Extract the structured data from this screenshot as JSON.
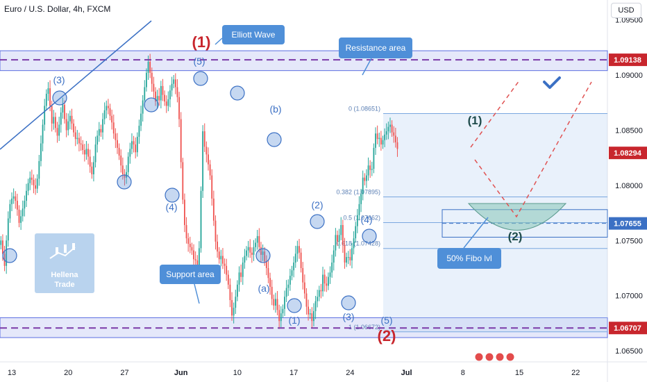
{
  "header": {
    "title": "Euro / U.S. Dollar, 4h, FXCM",
    "currency": "USD"
  },
  "watermark": {
    "line1": "Hellena",
    "line2": "Trade"
  },
  "colors": {
    "up": "#26a69a",
    "down": "#ef5350",
    "zone": "#5b6ee1",
    "wave": "#3b70c4",
    "red": "#c8262d",
    "dark": "#1e4b4b",
    "callout": "#4f8fd8"
  },
  "chart_data": {
    "type": "candlestick",
    "y_axis": {
      "ylim": [
        1.064,
        1.0968
      ],
      "tick_labels": [
        "1.09500",
        "1.09000",
        "1.08500",
        "1.08000",
        "1.07500",
        "1.07000",
        "1.06500"
      ],
      "tick_values": [
        1.095,
        1.09,
        1.085,
        1.08,
        1.075,
        1.07,
        1.065
      ],
      "price_tags": [
        {
          "label": "1.09138",
          "value": 1.09138,
          "color": "#c8262d"
        },
        {
          "label": "1.08294",
          "value": 1.08294,
          "color": "#c8262d"
        },
        {
          "label": "1.07655",
          "value": 1.07655,
          "color": "#3b70c4"
        },
        {
          "label": "1.06707",
          "value": 1.06707,
          "color": "#c8262d"
        }
      ]
    },
    "x_axis": {
      "tick_labels": [
        "13",
        "20",
        "27",
        "Jun",
        "10",
        "17",
        "24",
        "Jul",
        "8",
        "15",
        "22"
      ],
      "tick_bars": [
        6,
        37,
        68,
        99,
        130,
        161,
        192,
        223,
        254,
        285,
        316
      ]
    },
    "candles_close": [
      1.075,
      1.0738,
      1.0727,
      1.075,
      1.077,
      1.0783,
      1.0788,
      1.079,
      1.0786,
      1.0778,
      1.0766,
      1.0772,
      1.0779,
      1.0786,
      1.0795,
      1.0802,
      1.0807,
      1.0805,
      1.08,
      1.0797,
      1.0806,
      1.0822,
      1.0838,
      1.0855,
      1.0872,
      1.0883,
      1.0888,
      1.0872,
      1.0856,
      1.0862,
      1.0852,
      1.0845,
      1.0855,
      1.0866,
      1.0873,
      1.086,
      1.085,
      1.0858,
      1.0863,
      1.0856,
      1.0848,
      1.0842,
      1.0843,
      1.0838,
      1.0837,
      1.0832,
      1.0828,
      1.0833,
      1.0826,
      1.0817,
      1.081,
      1.0821,
      1.0837,
      1.0845,
      1.0851,
      1.0848,
      1.086,
      1.0868,
      1.0872,
      1.087,
      1.0863,
      1.0857,
      1.0847,
      1.0841,
      1.0834,
      1.0827,
      1.0818,
      1.081,
      1.0807,
      1.0812,
      1.0826,
      1.0833,
      1.084,
      1.0837,
      1.083,
      1.0844,
      1.0854,
      1.0865,
      1.0877,
      1.0889,
      1.0902,
      1.0912,
      1.0902,
      1.0892,
      1.0885,
      1.0876,
      1.0881,
      1.0877,
      1.089,
      1.0882,
      1.0876,
      1.0872,
      1.0878,
      1.0886,
      1.0892,
      1.0896,
      1.0889,
      1.088,
      1.086,
      1.0821,
      1.0787,
      1.0764,
      1.0752,
      1.0747,
      1.0744,
      1.0741,
      1.0733,
      1.0732,
      1.0725,
      1.0743,
      1.0795,
      1.0849,
      1.0835,
      1.0828,
      1.0819,
      1.0809,
      1.0788,
      1.0768,
      1.0749,
      1.074,
      1.0733,
      1.0736,
      1.0729,
      1.0727,
      1.0719,
      1.071,
      1.0696,
      1.0682,
      1.0689,
      1.0699,
      1.071,
      1.0721,
      1.0717,
      1.073,
      1.0736,
      1.0741,
      1.0744,
      1.0739,
      1.0737,
      1.0744,
      1.0748,
      1.0754,
      1.0744,
      1.0737,
      1.074,
      1.0731,
      1.0725,
      1.0716,
      1.0708,
      1.0697,
      1.0691,
      1.0697,
      1.0687,
      1.0677,
      1.0684,
      1.0688,
      1.0699,
      1.0707,
      1.071,
      1.0718,
      1.0723,
      1.073,
      1.0738,
      1.0745,
      1.0739,
      1.0725,
      1.0712,
      1.0702,
      1.069,
      1.0683,
      1.0684,
      1.0677,
      1.0686,
      1.0695,
      1.0699,
      1.0705,
      1.0704,
      1.0719,
      1.0711,
      1.0709,
      1.0717,
      1.0721,
      1.073,
      1.0741,
      1.0755,
      1.0749,
      1.0755,
      1.0764,
      1.0746,
      1.073,
      1.0735,
      1.0735,
      1.0732,
      1.0743,
      1.0752,
      1.0763,
      1.0773,
      1.0783,
      1.0792,
      1.0807,
      1.0804,
      1.0809,
      1.0818,
      1.0814,
      1.0815,
      1.0834,
      1.0847,
      1.0842,
      1.0843,
      1.0837,
      1.0841,
      1.0846,
      1.0849,
      1.0853,
      1.0855,
      1.0848,
      1.0845,
      1.0839,
      1.0833
    ],
    "zones": [
      {
        "name": "resistance",
        "from": 1.0904,
        "to": 1.0922,
        "dashed_level": 1.09138
      },
      {
        "name": "support",
        "from": 1.0662,
        "to": 1.068,
        "dashed_level": 1.06707
      }
    ],
    "fibonacci": {
      "levels": [
        {
          "label": "0 (1.08651)",
          "value": 1.08651
        },
        {
          "label": "0.382 (1.07895)",
          "value": 1.07895
        },
        {
          "label": "0.5 (1.07662)",
          "value": 1.07662
        },
        {
          "label": "0.618 (1.07428)",
          "value": 1.07428
        },
        {
          "label": "1 (1.06672)",
          "value": 1.06672
        }
      ]
    },
    "wave_labels": [
      {
        "text": "(1)",
        "color": "red",
        "size": "large"
      },
      {
        "text": "(5)",
        "color": "blue"
      },
      {
        "text": "(3)",
        "color": "blue"
      },
      {
        "text": "(4)",
        "color": "blue"
      },
      {
        "text": "(b)",
        "color": "blue"
      },
      {
        "text": "(a)",
        "color": "blue"
      },
      {
        "text": "(2)",
        "color": "blue"
      },
      {
        "text": "(4)",
        "color": "blue"
      },
      {
        "text": "(1)",
        "color": "blue"
      },
      {
        "text": "(3)",
        "color": "blue"
      },
      {
        "text": "(5)",
        "color": "blue"
      },
      {
        "text": "(2)",
        "color": "red",
        "size": "large"
      },
      {
        "text": "(1)",
        "color": "dark"
      },
      {
        "text": "(2)",
        "color": "dark"
      }
    ],
    "callouts": [
      "Elliott Wave",
      "Resistance area",
      "Support area",
      "50% Fibo lvl"
    ]
  }
}
